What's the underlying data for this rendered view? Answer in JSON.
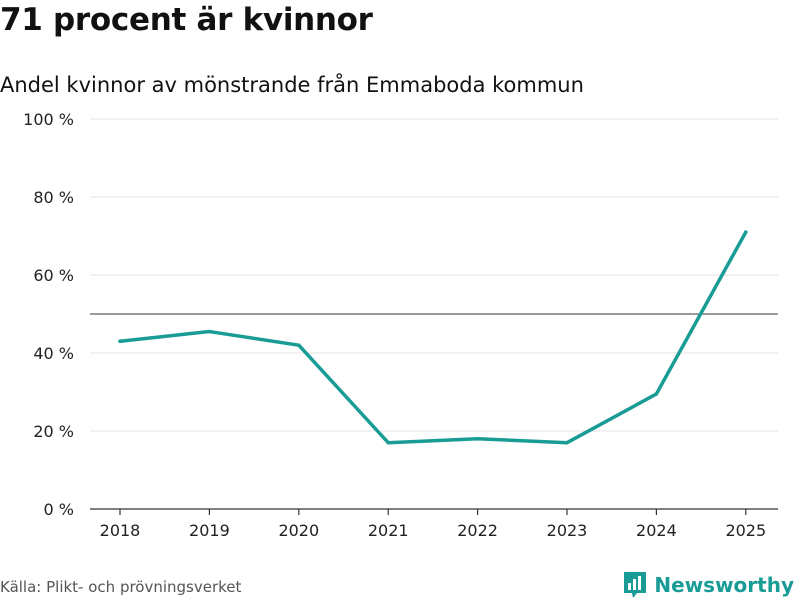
{
  "title": "71 procent är kvinnor",
  "subtitle": "Andel kvinnor av mönstrande från Emmaboda kommun",
  "source": "Källa: Plikt- och prövningsverket",
  "brand": {
    "name": "Newsworthy",
    "icon": "newsworthy-logo-icon",
    "color": "#199c95"
  },
  "chart_data": {
    "type": "line",
    "title": "71 procent är kvinnor",
    "subtitle": "Andel kvinnor av mönstrande från Emmaboda kommun",
    "xlabel": "",
    "ylabel": "",
    "x": [
      "2018",
      "2019",
      "2020",
      "2021",
      "2022",
      "2023",
      "2024",
      "2025"
    ],
    "series": [
      {
        "values": [
          43,
          45.5,
          42,
          17,
          18,
          17,
          29.5,
          71
        ],
        "color": "#199c95"
      }
    ],
    "ylim": [
      0,
      100
    ],
    "yticks": [
      0,
      20,
      40,
      60,
      80,
      100
    ],
    "ytick_labels": [
      "0 %",
      "20 %",
      "40 %",
      "60 %",
      "80 %",
      "100 %"
    ],
    "reference_line": 50,
    "grid": true,
    "legend": "none"
  }
}
